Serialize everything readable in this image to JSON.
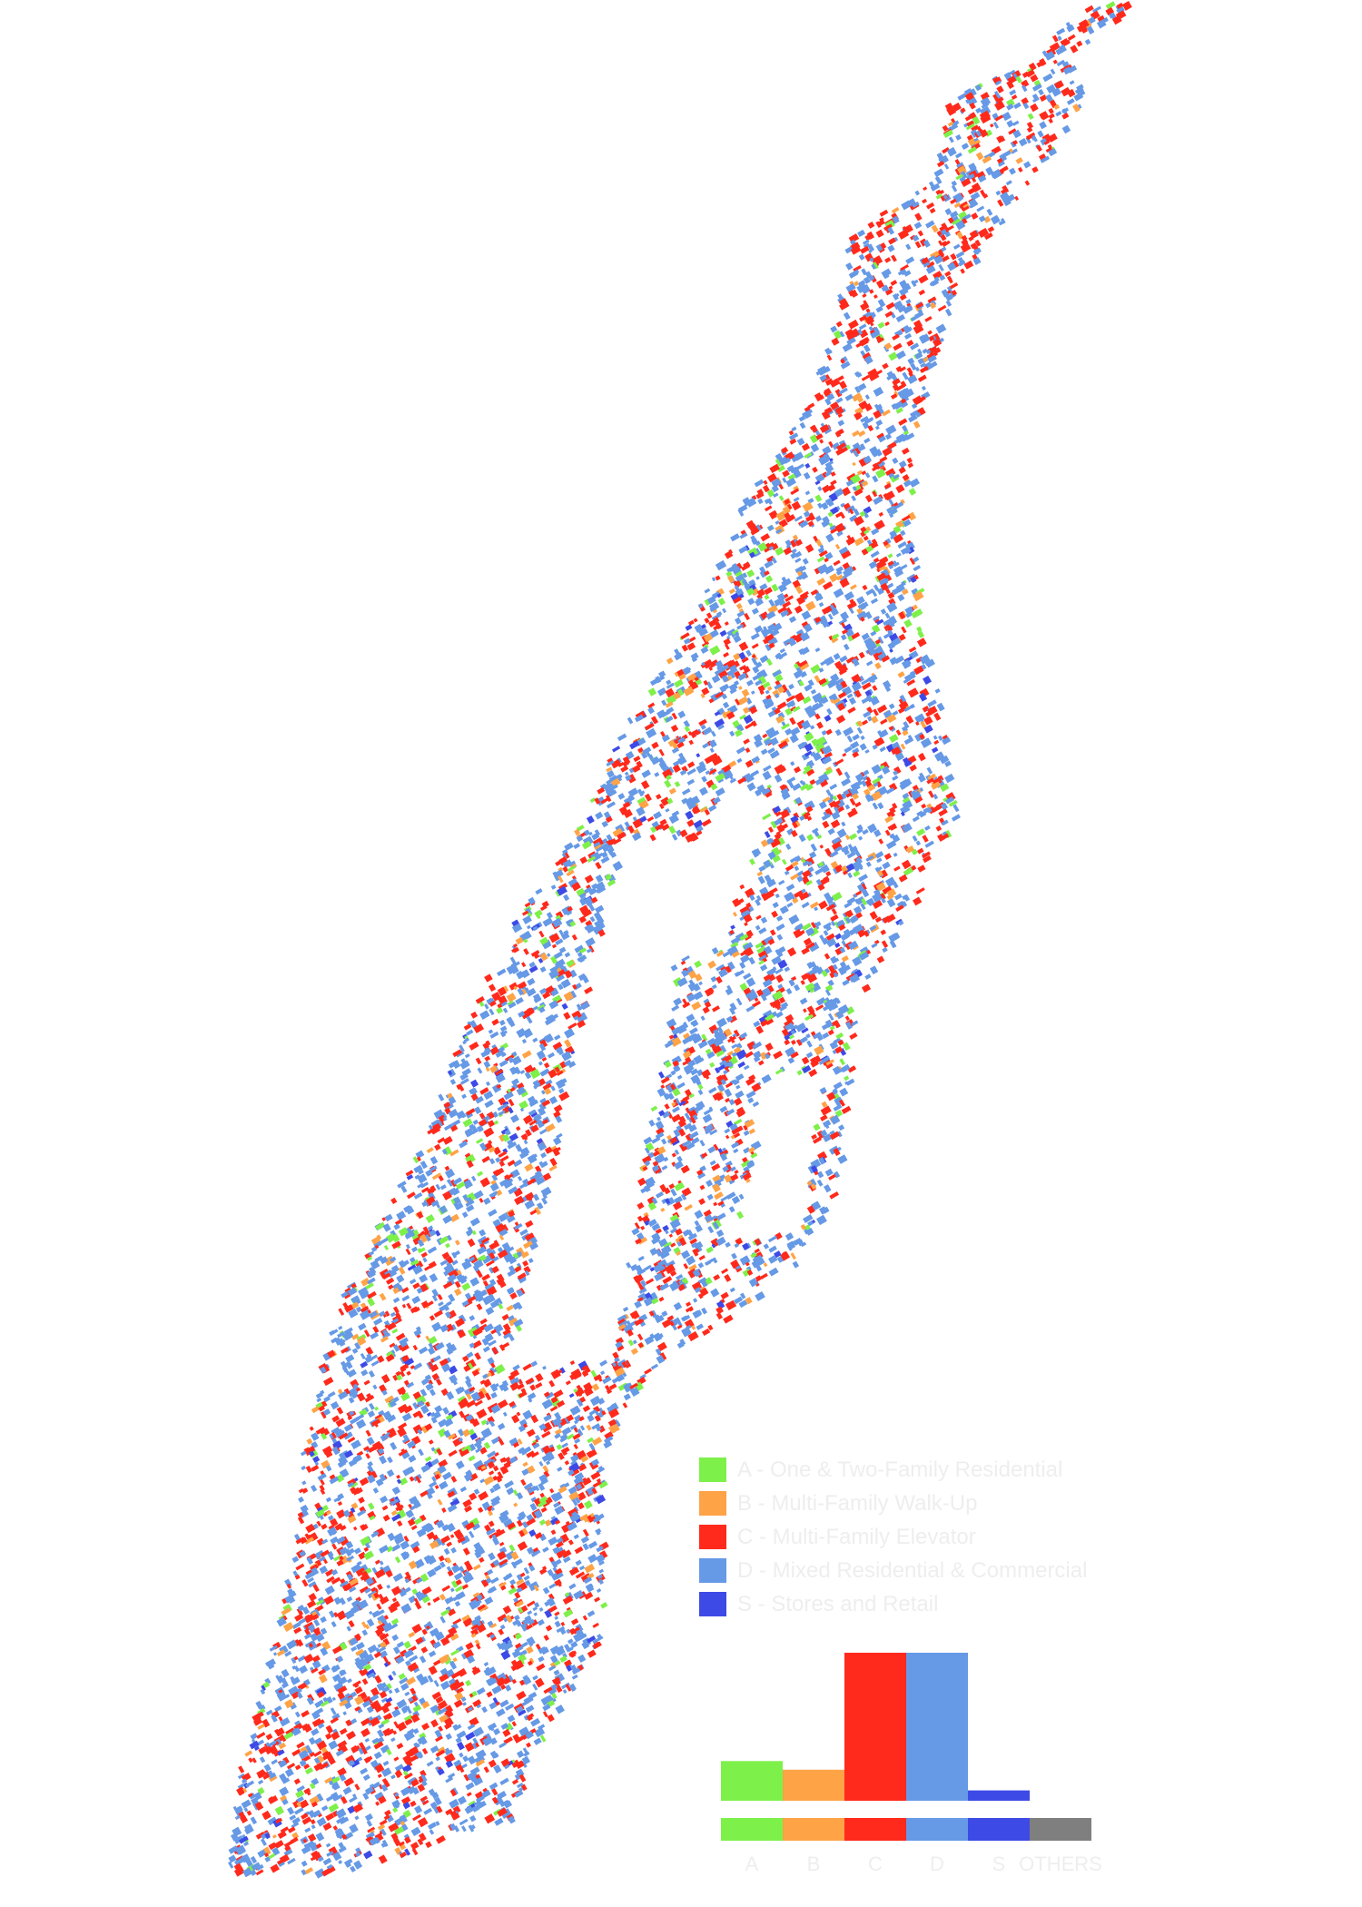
{
  "colors": {
    "A": "#7ef04a",
    "B": "#ffa347",
    "C": "#ff2a1c",
    "D": "#6699e6",
    "S": "#3d4ae6",
    "OTHERS": "#7f7f7f"
  },
  "legend": {
    "items": [
      {
        "key": "A",
        "label": "A - One & Two-Family Residential"
      },
      {
        "key": "B",
        "label": "B - Multi-Family Walk-Up"
      },
      {
        "key": "C",
        "label": "C - Multi-Family Elevator"
      },
      {
        "key": "D",
        "label": "D - Mixed Residential & Commercial"
      },
      {
        "key": "S",
        "label": "S - Stores and Retail"
      }
    ]
  },
  "chart_data": {
    "type": "bar",
    "categories": [
      "A",
      "B",
      "C",
      "D",
      "S",
      "OTHERS"
    ],
    "values": [
      23,
      18,
      100,
      97,
      6,
      0
    ],
    "xlabel": "",
    "ylabel": "",
    "grid": false
  }
}
